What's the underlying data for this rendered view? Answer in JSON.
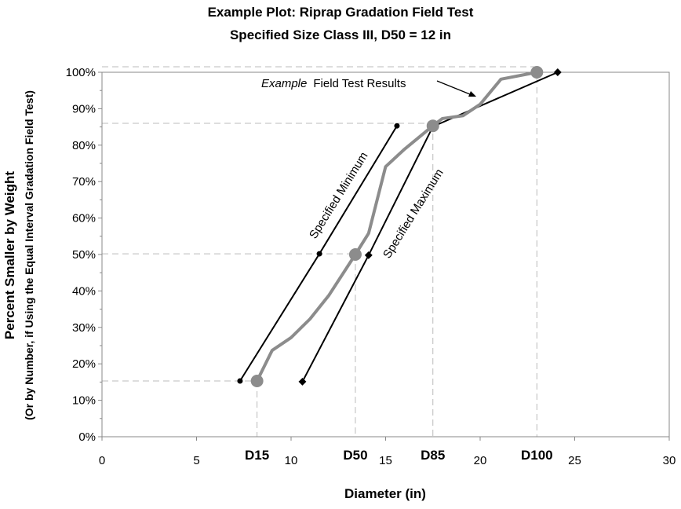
{
  "chart_data": {
    "type": "line",
    "title": "Example Plot: Riprap Gradation Field Test",
    "subtitle": "Specified Size Class III, D50 = 12 in",
    "xlabel": "Diameter (in)",
    "ylabel": "Percent Smaller by Weight",
    "ylabel2": "(Or by Number, if Using the Equal Interval Gradation Field Test)",
    "xlim": [
      0,
      30
    ],
    "ylim": [
      0,
      100
    ],
    "x_ticks": [
      "0",
      "5",
      "10",
      "15",
      "20",
      "25",
      "30"
    ],
    "y_ticks": [
      "0%",
      "10%",
      "20%",
      "30%",
      "40%",
      "50%",
      "60%",
      "70%",
      "80%",
      "90%",
      "100%"
    ],
    "grid": false,
    "series": [
      {
        "name": "Specified Minimum",
        "color": "#000000",
        "x": [
          7.3,
          11.5,
          15.6
        ],
        "y": [
          15.3,
          50.2,
          85.3
        ]
      },
      {
        "name": "Specified Maximum",
        "color": "#000000",
        "x": [
          10.6,
          14.1,
          17.5,
          24.1
        ],
        "y": [
          15.1,
          49.8,
          85.1,
          100
        ]
      },
      {
        "name": "Example Field Test Results",
        "color": "#8c8c8c",
        "x": [
          8.1,
          8.2,
          9.0,
          10.0,
          11.0,
          12.0,
          13.4,
          14.1,
          15.0,
          16.0,
          17.5,
          18.0,
          19.1,
          20.0,
          21.1,
          23.0
        ],
        "y": [
          13.8,
          15.3,
          23.7,
          27.2,
          32.3,
          38.8,
          50.0,
          55.8,
          74.1,
          78.9,
          85.3,
          87.3,
          88.1,
          91.2,
          98.1,
          100
        ]
      }
    ],
    "markers": [
      {
        "label": "D15",
        "x": 8.2,
        "y": 15.3
      },
      {
        "label": "D50",
        "x": 13.4,
        "y": 50.2
      },
      {
        "label": "D85",
        "x": 17.5,
        "y": 86
      },
      {
        "label": "D100",
        "x": 23.0,
        "y": 101.5
      }
    ],
    "annotations": {
      "field_italic": "Example",
      "field_text": "Field Test Results",
      "min_label": "Specified Minimum",
      "max_label": "Specified Maximum"
    }
  }
}
